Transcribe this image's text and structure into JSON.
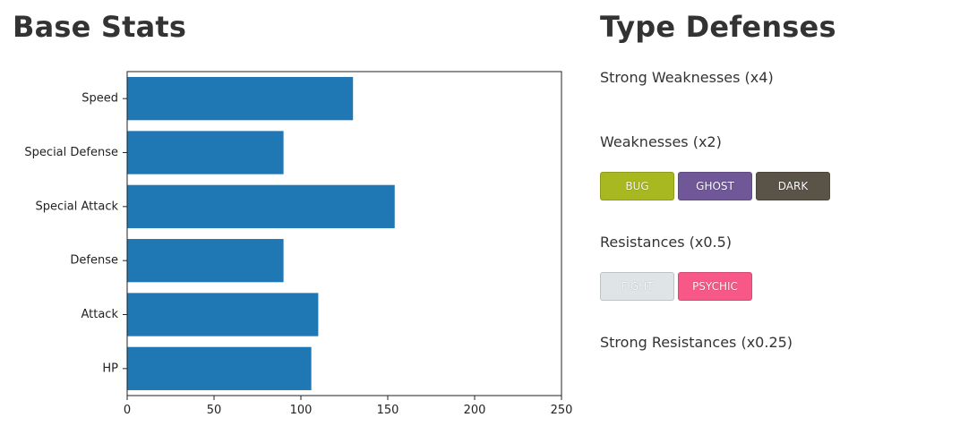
{
  "left_title": "Base Stats",
  "right_title": "Type Defenses",
  "chart_data": {
    "type": "bar",
    "orientation": "horizontal",
    "categories": [
      "HP",
      "Attack",
      "Defense",
      "Special Attack",
      "Special Defense",
      "Speed"
    ],
    "values": [
      106,
      110,
      90,
      154,
      90,
      130
    ],
    "xlim": [
      0,
      250
    ],
    "xticks": [
      0,
      50,
      100,
      150,
      200,
      250
    ],
    "bar_color": "#1f77b4",
    "title": "",
    "xlabel": "",
    "ylabel": "",
    "grid": false
  },
  "type_defenses": {
    "strong_weaknesses": {
      "title": "Strong Weaknesses (x4)",
      "types": []
    },
    "weaknesses": {
      "title": "Weaknesses (x2)",
      "types": [
        {
          "label": "BUG",
          "color": "#a8b820"
        },
        {
          "label": "GHOST",
          "color": "#705898"
        },
        {
          "label": "DARK",
          "color": "#5a5347"
        }
      ]
    },
    "resistances": {
      "title": "Resistances (x0.5)",
      "types": [
        {
          "label": "FIGHT",
          "color": "#dfe4e6"
        },
        {
          "label": "PSYCHIC",
          "color": "#f85888"
        }
      ]
    },
    "strong_resistances": {
      "title": "Strong Resistances (x0.25)",
      "types": []
    }
  }
}
